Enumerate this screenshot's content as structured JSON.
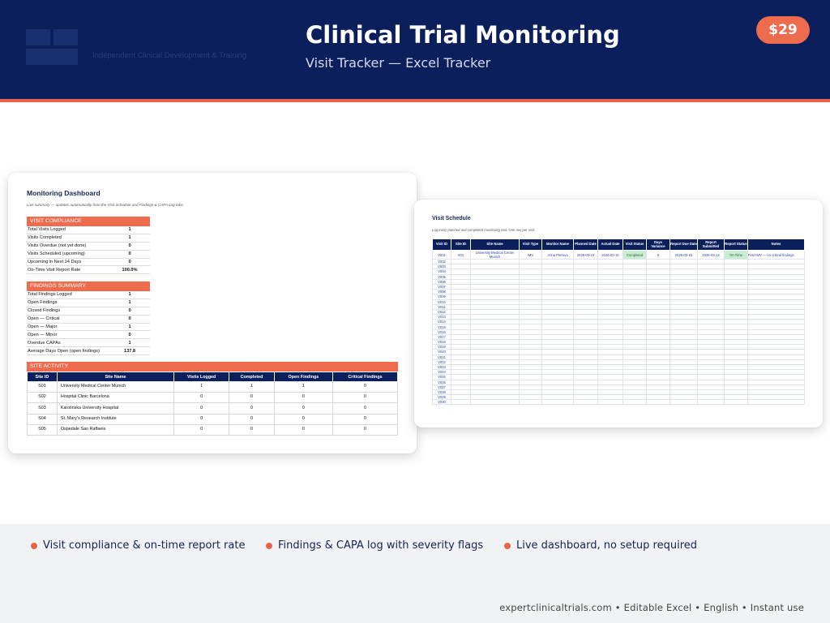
{
  "header": {
    "tagline": "Independent Clinical Development & Training",
    "title": "Clinical Trial Monitoring",
    "subtitle": "Visit Tracker  —  Excel Tracker",
    "price": "$29",
    "colors": {
      "navy": "#0b1f5c",
      "accent": "#e8654a"
    }
  },
  "dashboard": {
    "title": "Monitoring Dashboard",
    "note": "Live summary — updates automatically from the Visit Schedule and Findings & CAPA Log tabs.",
    "visit_compliance": {
      "heading": "VISIT COMPLIANCE",
      "rows": [
        {
          "label": "Total Visits Logged",
          "value": "1"
        },
        {
          "label": "Visits Completed",
          "value": "1"
        },
        {
          "label": "Visits Overdue (not yet done)",
          "value": "0"
        },
        {
          "label": "Visits Scheduled (upcoming)",
          "value": "0"
        },
        {
          "label": "Upcoming in Next 14 Days",
          "value": "0"
        },
        {
          "label": "On-Time Visit Report Rate",
          "value": "100.0%"
        }
      ]
    },
    "findings_summary": {
      "heading": "FINDINGS SUMMARY",
      "rows": [
        {
          "label": "Total Findings Logged",
          "value": "1"
        },
        {
          "label": "Open Findings",
          "value": "1"
        },
        {
          "label": "Closed Findings",
          "value": "0"
        },
        {
          "label": "Open — Critical",
          "value": "0"
        },
        {
          "label": "Open — Major",
          "value": "1"
        },
        {
          "label": "Open — Minor",
          "value": "0"
        },
        {
          "label": "Overdue CAPAs",
          "value": "1"
        },
        {
          "label": "Average Days Open (open findings)",
          "value": "137.8"
        }
      ]
    },
    "site_activity": {
      "heading": "SITE ACTIVITY",
      "columns": [
        "Site ID",
        "Site Name",
        "Visits Logged",
        "Completed",
        "Open Findings",
        "Critical Findings"
      ],
      "rows": [
        [
          "S01",
          "University Medical Center Munich",
          "1",
          "1",
          "1",
          "0"
        ],
        [
          "S02",
          "Hospital Clinic Barcelona",
          "0",
          "0",
          "0",
          "0"
        ],
        [
          "S03",
          "Karolinska University Hospital",
          "0",
          "0",
          "0",
          "0"
        ],
        [
          "S04",
          "St. Mary's Research Institute",
          "0",
          "0",
          "0",
          "0"
        ],
        [
          "S05",
          "Ospedale San Raffaele",
          "0",
          "0",
          "0",
          "0"
        ]
      ]
    }
  },
  "schedule": {
    "title": "Visit Schedule",
    "note": "Log every planned and completed monitoring visit. One row per visit.",
    "columns": [
      "Visit ID",
      "Site ID",
      "Site Name",
      "Visit Type",
      "Monitor Name",
      "Planned Date",
      "Actual Date",
      "Visit Status",
      "Days Variance",
      "Report Due Date",
      "Report Submitted",
      "Report Status",
      "Notes"
    ],
    "first_row": [
      "V001",
      "S01",
      "University Medical Center Munich",
      "IMV",
      "Anna Petrova",
      "2026-03-10",
      "2026-03-10",
      "Completed",
      "0",
      "2026-03-15",
      "2026-03-14",
      "On Time",
      "First IMV — no critical findings"
    ],
    "visit_ids": [
      "V002",
      "V003",
      "V004",
      "V005",
      "V006",
      "V007",
      "V008",
      "V009",
      "V010",
      "V011",
      "V012",
      "V013",
      "V014",
      "V015",
      "V016",
      "V017",
      "V018",
      "V019",
      "V020",
      "V021",
      "V022",
      "V023",
      "V024",
      "V025",
      "V026",
      "V027",
      "V028",
      "V029",
      "V030"
    ]
  },
  "features": [
    "Visit compliance & on-time report rate",
    "Findings & CAPA log with severity flags",
    "Live dashboard, no setup required"
  ],
  "footer": "expertclinicaltrials.com  •  Editable Excel • English • Instant use"
}
